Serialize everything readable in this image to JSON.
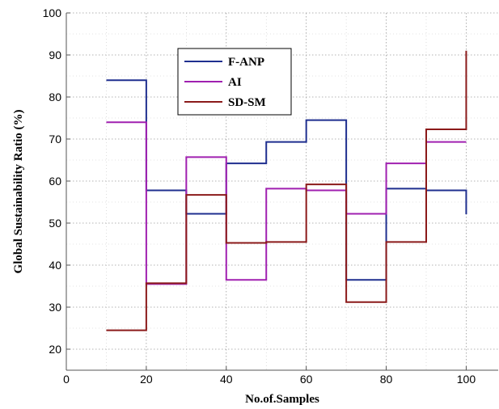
{
  "chart_data": {
    "type": "line",
    "step": true,
    "xlabel": "No.of.Samples",
    "ylabel": "Global Sustainability Ratio (%)",
    "xlim": [
      0,
      108
    ],
    "ylim": [
      15,
      100
    ],
    "xticks": [
      0,
      20,
      40,
      60,
      80,
      100
    ],
    "yticks": [
      20,
      30,
      40,
      50,
      60,
      70,
      80,
      90,
      100
    ],
    "grid": true,
    "legend_position": "top-left",
    "x": [
      10,
      20,
      30,
      40,
      50,
      60,
      70,
      80,
      90,
      100
    ],
    "series": [
      {
        "name": "F-ANP",
        "color": "#1f2f8f",
        "values": [
          84,
          57.8,
          52.2,
          64.2,
          69.3,
          74.5,
          36.5,
          58.2,
          57.8,
          52.1
        ]
      },
      {
        "name": "AI",
        "color": "#a020b0",
        "values": [
          74,
          35.5,
          65.7,
          36.5,
          58.2,
          57.8,
          52.2,
          64.2,
          69.3,
          69.3
        ]
      },
      {
        "name": "SD-SM",
        "color": "#8b1a1a",
        "values": [
          24.5,
          35.7,
          56.7,
          45.3,
          45.5,
          59.2,
          31.2,
          45.5,
          72.3,
          91
        ]
      }
    ]
  }
}
